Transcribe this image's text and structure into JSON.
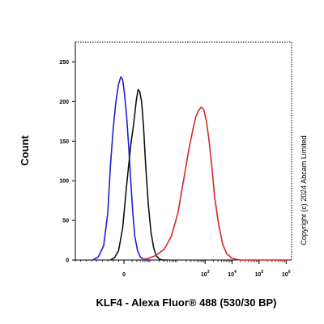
{
  "chart_data": {
    "type": "line",
    "title": "",
    "xlabel": "KLF4 - Alexa Fluor® 488 (530/30 BP)",
    "ylabel": "Count",
    "ylim": [
      0,
      275
    ],
    "xscale": "biexponential (log decades)",
    "xlim_decade": [
      -1.8,
      6.2
    ],
    "y_ticks": [
      "0",
      "50",
      "100",
      "150",
      "200",
      "250"
    ],
    "x_ticks": [
      {
        "base": "0",
        "exp": "",
        "decade": 0
      },
      {
        "base": "10",
        "exp": "3",
        "decade": 3
      },
      {
        "base": "10",
        "exp": "4",
        "decade": 4
      },
      {
        "base": "10",
        "exp": "5",
        "decade": 5
      },
      {
        "base": "10",
        "exp": "6",
        "decade": 6
      }
    ],
    "legend": "none",
    "grid": false,
    "series": [
      {
        "color": "#1f1fd6",
        "x": [
          -1.15,
          -0.95,
          -0.75,
          -0.6,
          -0.5,
          -0.4,
          -0.3,
          -0.2,
          -0.12,
          -0.05,
          0.02,
          0.1,
          0.18,
          0.25,
          0.32,
          0.4,
          0.5,
          0.6,
          0.72,
          0.85,
          1.0
        ],
        "y": [
          0,
          4,
          18,
          60,
          120,
          165,
          200,
          222,
          231,
          228,
          210,
          180,
          140,
          100,
          62,
          30,
          12,
          4,
          1,
          0,
          0
        ]
      },
      {
        "color": "#111111",
        "x": [
          -0.5,
          -0.35,
          -0.2,
          -0.05,
          0.1,
          0.25,
          0.35,
          0.45,
          0.52,
          0.58,
          0.65,
          0.72,
          0.8,
          0.9,
          1.0,
          1.1,
          1.2,
          1.32,
          1.45,
          1.6
        ],
        "y": [
          0,
          3,
          12,
          40,
          95,
          145,
          170,
          200,
          215,
          213,
          200,
          170,
          120,
          70,
          35,
          15,
          5,
          1,
          0,
          0
        ]
      },
      {
        "color": "#d42828",
        "x": [
          0.6,
          0.9,
          1.2,
          1.5,
          1.75,
          2.0,
          2.2,
          2.4,
          2.55,
          2.65,
          2.75,
          2.85,
          2.95,
          3.05,
          3.15,
          3.25,
          3.35,
          3.5,
          3.65,
          3.8,
          4.0,
          4.3,
          5.0,
          6.2
        ],
        "y": [
          0,
          2,
          6,
          14,
          30,
          60,
          100,
          140,
          165,
          180,
          188,
          193,
          190,
          175,
          150,
          118,
          80,
          45,
          20,
          8,
          2,
          0,
          0,
          0
        ]
      }
    ]
  },
  "copyright": "Copyright (c) 2024  Abcam Limited"
}
